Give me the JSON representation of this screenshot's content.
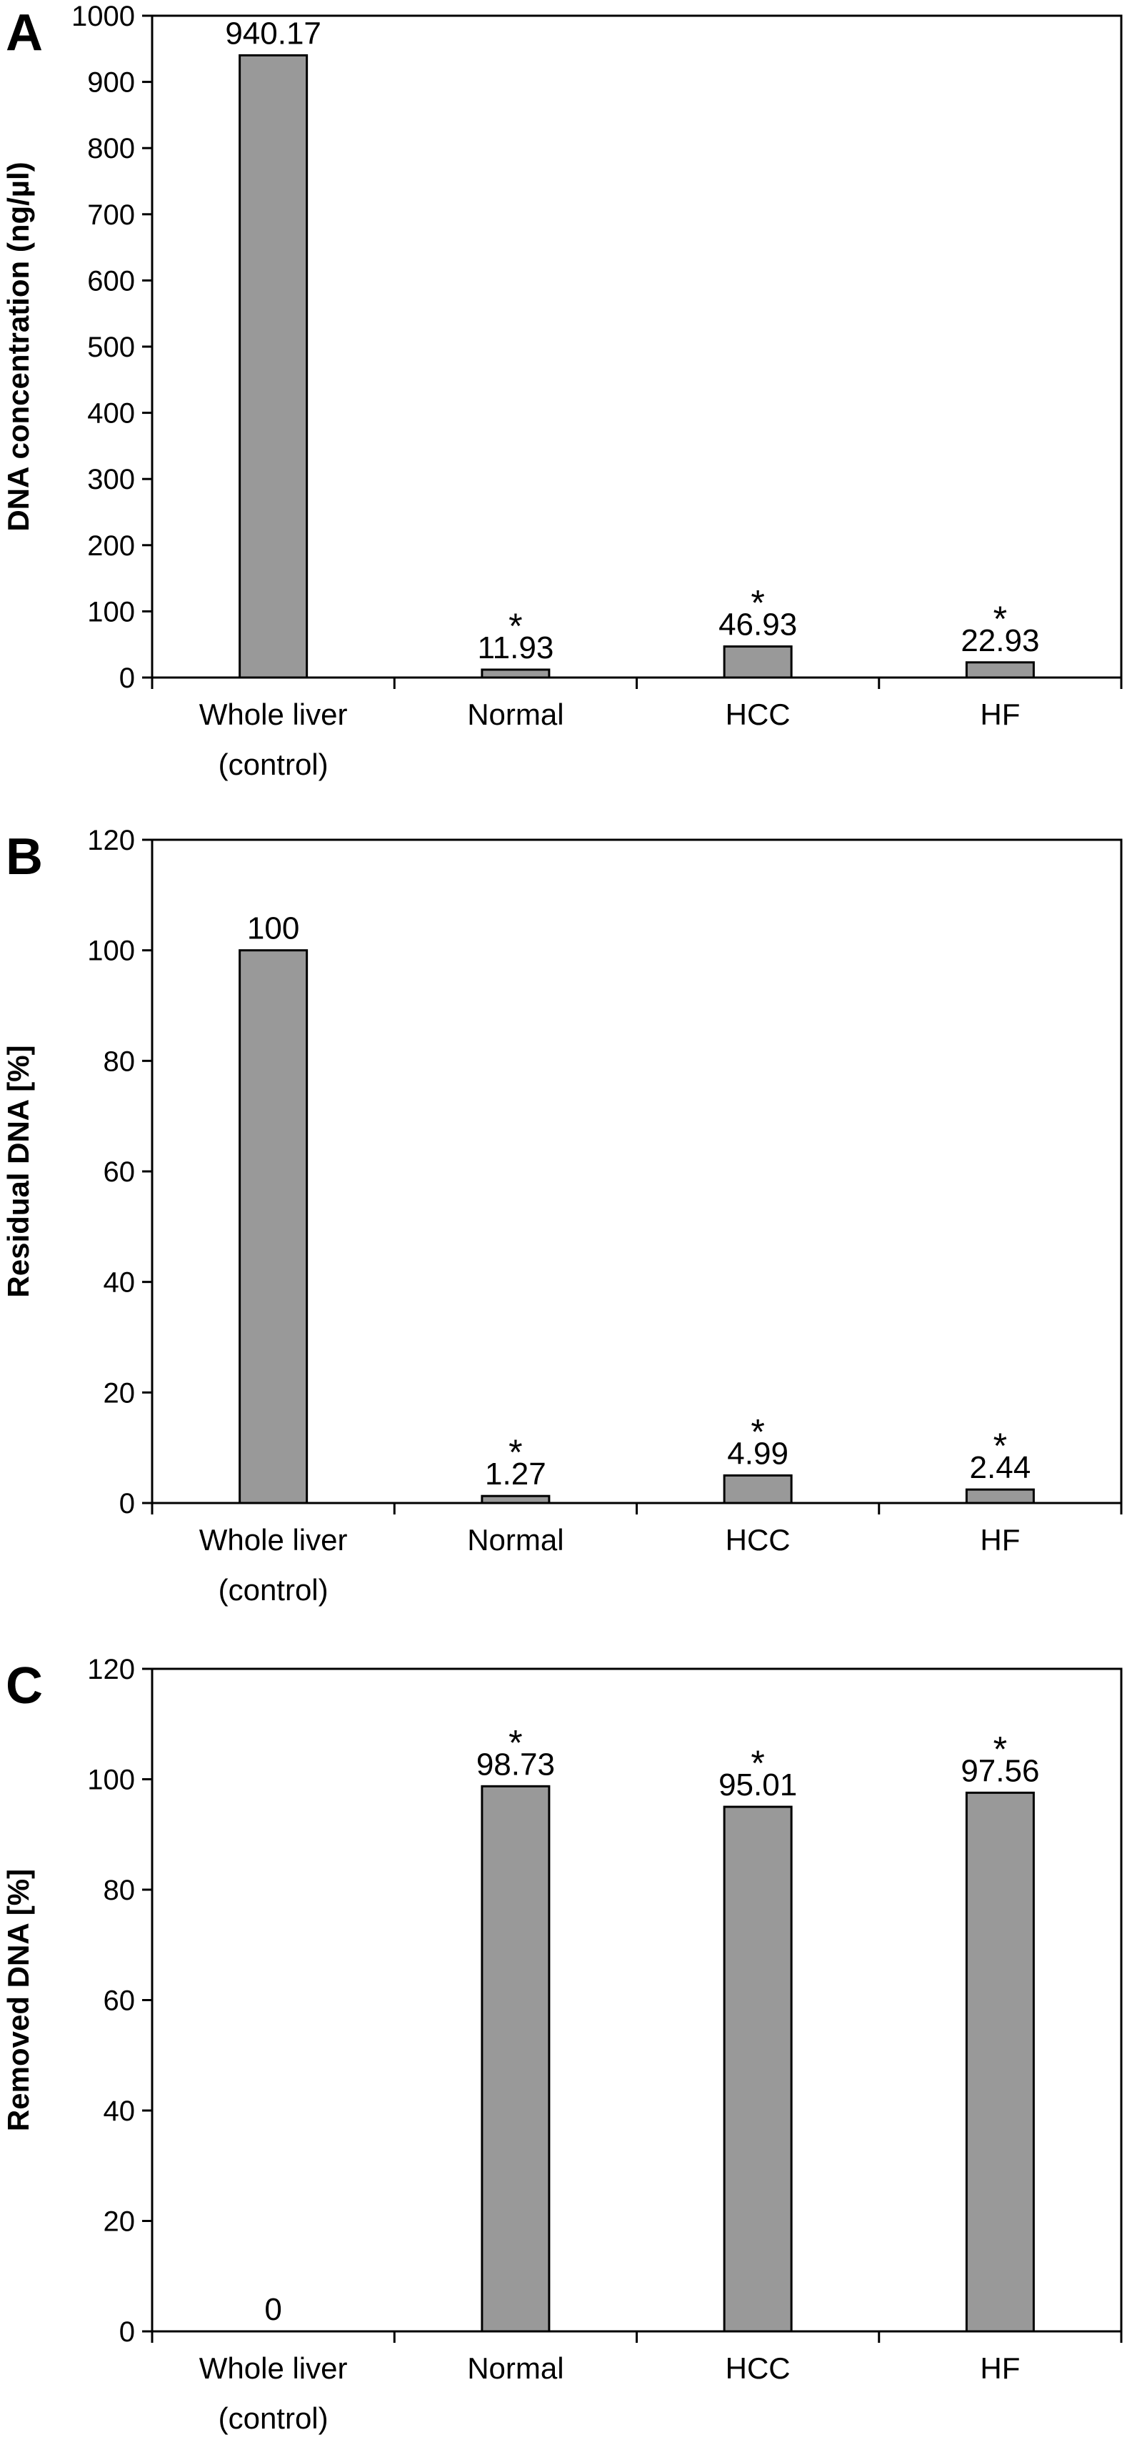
{
  "colors": {
    "bar_fill": "#999999",
    "stroke": "#000000",
    "background": "#ffffff"
  },
  "chart_data": [
    {
      "type": "bar",
      "panel": "A",
      "categories": [
        "Whole liver\n(control)",
        "Normal",
        "HCC",
        "HF"
      ],
      "values": [
        940.17,
        11.93,
        46.93,
        22.93
      ],
      "labels": [
        "940.17",
        "11.93",
        "46.93",
        "22.93"
      ],
      "significance": [
        "",
        "*",
        "*",
        "*"
      ],
      "ylabel": "DNA concentration (ng/µl)",
      "xlabel": "",
      "ylim": [
        0,
        1000
      ],
      "yticks": [
        0,
        100,
        200,
        300,
        400,
        500,
        600,
        700,
        800,
        900,
        1000
      ],
      "grid": false
    },
    {
      "type": "bar",
      "panel": "B",
      "categories": [
        "Whole liver\n(control)",
        "Normal",
        "HCC",
        "HF"
      ],
      "values": [
        100,
        1.27,
        4.99,
        2.44
      ],
      "labels": [
        "100",
        "1.27",
        "4.99",
        "2.44"
      ],
      "significance": [
        "",
        "*",
        "*",
        "*"
      ],
      "ylabel": "Residual DNA [%]",
      "xlabel": "",
      "ylim": [
        0,
        120
      ],
      "yticks": [
        0,
        20,
        40,
        60,
        80,
        100,
        120
      ],
      "grid": false
    },
    {
      "type": "bar",
      "panel": "C",
      "categories": [
        "Whole liver\n(control)",
        "Normal",
        "HCC",
        "HF"
      ],
      "values": [
        0,
        98.73,
        95.01,
        97.56
      ],
      "labels": [
        "0",
        "98.73",
        "95.01",
        "97.56"
      ],
      "significance": [
        "",
        "*",
        "*",
        "*"
      ],
      "ylabel": "Removed DNA [%]",
      "xlabel": "",
      "ylim": [
        0,
        120
      ],
      "yticks": [
        0,
        20,
        40,
        60,
        80,
        100,
        120
      ],
      "grid": false
    }
  ]
}
